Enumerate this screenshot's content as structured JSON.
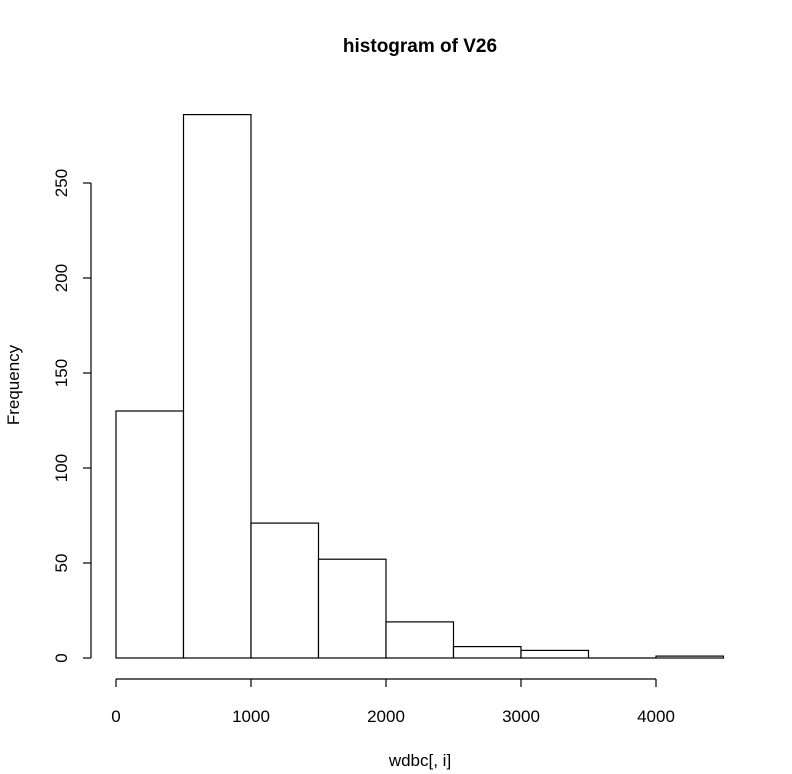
{
  "chart_data": {
    "type": "bar",
    "title": "histogram of  V26",
    "xlabel": "wdbc[, i]",
    "ylabel": "Frequency",
    "bin_edges": [
      0,
      500,
      1000,
      1500,
      2000,
      2500,
      3000,
      3500,
      4000,
      4500
    ],
    "values": [
      130,
      286,
      71,
      52,
      19,
      6,
      4,
      0,
      1
    ],
    "xlim": [
      0,
      4500
    ],
    "ylim": [
      0,
      286
    ],
    "x_ticks": [
      0,
      1000,
      2000,
      3000,
      4000
    ],
    "y_ticks": [
      0,
      50,
      100,
      150,
      200,
      250
    ],
    "x_tick_labels": [
      "0",
      "1000",
      "2000",
      "3000",
      "4000"
    ],
    "y_tick_labels": [
      "0",
      "50",
      "100",
      "150",
      "200",
      "250"
    ],
    "grid": false,
    "colors": {
      "bar_fill": "#ffffff",
      "bar_stroke": "#000000"
    }
  }
}
